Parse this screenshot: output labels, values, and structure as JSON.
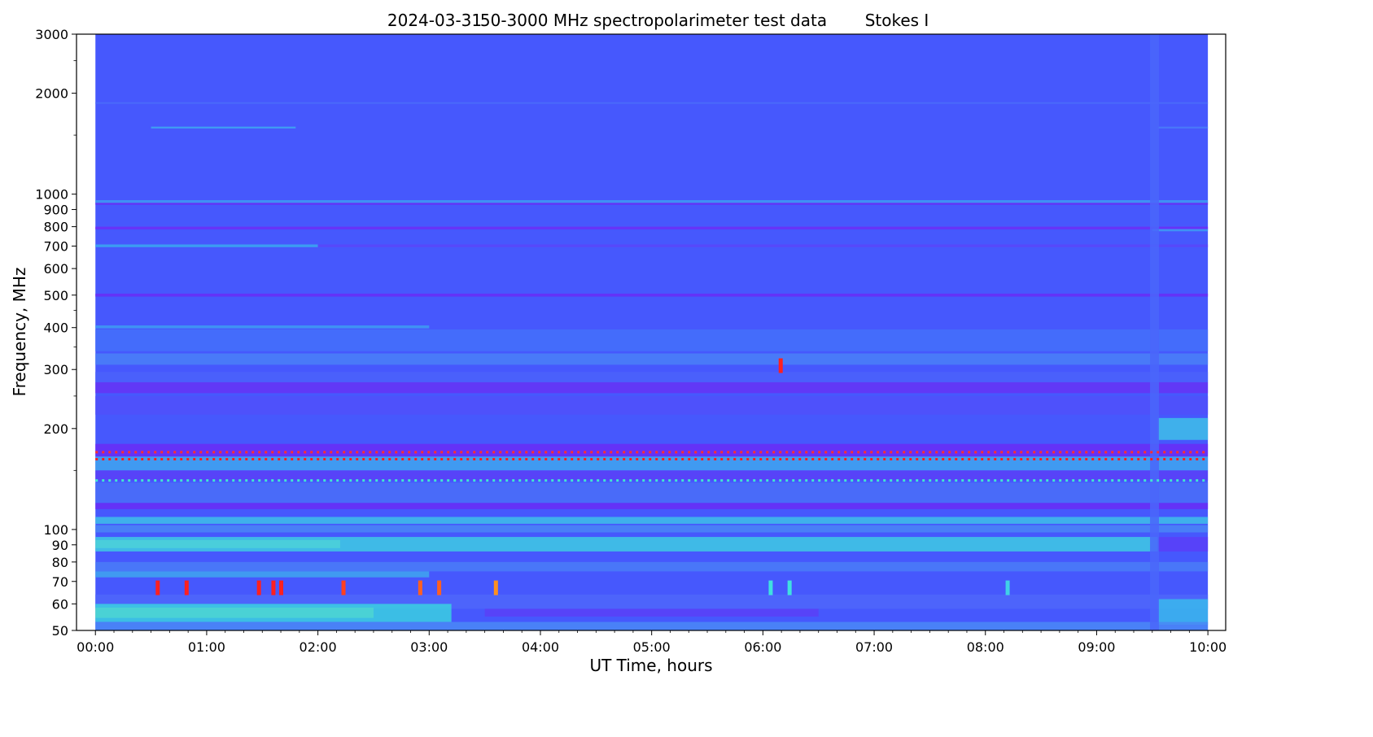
{
  "chart_data": {
    "type": "heatmap",
    "title": {
      "date": "2024-03-31",
      "description": "50-3000 MHz spectropolarimeter test data",
      "parameter": "Stokes I"
    },
    "xlabel": "UT Time, hours",
    "ylabel": "Frequency, MHz",
    "x_scale": "linear",
    "y_scale": "log",
    "xlim_hours": [
      -0.17,
      10.16
    ],
    "data_extent_hours": [
      0,
      10
    ],
    "ylim": [
      50,
      3000
    ],
    "x_ticks": [
      {
        "value": 0,
        "label": "00:00"
      },
      {
        "value": 1,
        "label": "01:00"
      },
      {
        "value": 2,
        "label": "02:00"
      },
      {
        "value": 3,
        "label": "03:00"
      },
      {
        "value": 4,
        "label": "04:00"
      },
      {
        "value": 5,
        "label": "05:00"
      },
      {
        "value": 6,
        "label": "06:00"
      },
      {
        "value": 7,
        "label": "07:00"
      },
      {
        "value": 8,
        "label": "08:00"
      },
      {
        "value": 9,
        "label": "09:00"
      },
      {
        "value": 10,
        "label": "10:00"
      }
    ],
    "y_ticks": [
      {
        "value": 50,
        "label": "50"
      },
      {
        "value": 60,
        "label": "60"
      },
      {
        "value": 70,
        "label": "70"
      },
      {
        "value": 80,
        "label": "80"
      },
      {
        "value": 90,
        "label": "90"
      },
      {
        "value": 100,
        "label": "100"
      },
      {
        "value": 200,
        "label": "200"
      },
      {
        "value": 300,
        "label": "300"
      },
      {
        "value": 400,
        "label": "400"
      },
      {
        "value": 500,
        "label": "500"
      },
      {
        "value": 600,
        "label": "600"
      },
      {
        "value": 700,
        "label": "700"
      },
      {
        "value": 800,
        "label": "800"
      },
      {
        "value": 900,
        "label": "900"
      },
      {
        "value": 1000,
        "label": "1000"
      },
      {
        "value": 2000,
        "label": "2000"
      },
      {
        "value": 3000,
        "label": "3000"
      }
    ],
    "y_minor_ticks": [
      1500,
      2500,
      150,
      250,
      350,
      450
    ],
    "colormap": "rainbow",
    "background_color": "#4658fd",
    "bands": [
      {
        "fmin": 1570,
        "fmax": 1590,
        "color": "#3ea8f0",
        "t0": 0.5,
        "t1": 1.8
      },
      {
        "fmin": 1570,
        "fmax": 1590,
        "color": "#4a7cf8",
        "t0": 9.55,
        "t1": 10
      },
      {
        "fmin": 1860,
        "fmax": 1880,
        "color": "#4b6ef9",
        "t0": 0,
        "t1": 10
      },
      {
        "fmin": 940,
        "fmax": 960,
        "color": "#3e9af2",
        "t0": 0,
        "t1": 10
      },
      {
        "fmin": 930,
        "fmax": 942,
        "color": "#6a2cf6",
        "t0": 0,
        "t1": 10
      },
      {
        "fmin": 785,
        "fmax": 800,
        "color": "#6d2df6",
        "t0": 0,
        "t1": 10
      },
      {
        "fmin": 775,
        "fmax": 787,
        "color": "#3e9cf2",
        "t0": 9.5,
        "t1": 10
      },
      {
        "fmin": 695,
        "fmax": 708,
        "color": "#3aa8ef",
        "t0": 0,
        "t1": 2
      },
      {
        "fmin": 695,
        "fmax": 708,
        "color": "#5a45f9",
        "t0": 2,
        "t1": 10
      },
      {
        "fmin": 495,
        "fmax": 505,
        "color": "#6a2cf6",
        "t0": 0,
        "t1": 10
      },
      {
        "fmin": 398,
        "fmax": 406,
        "color": "#3e9cf2",
        "t0": 0,
        "t1": 3
      },
      {
        "fmin": 340,
        "fmax": 395,
        "color": "#4470fa",
        "t0": 0,
        "t1": 10
      },
      {
        "fmin": 310,
        "fmax": 335,
        "color": "#4a80f7",
        "t0": 0,
        "t1": 10
      },
      {
        "fmin": 255,
        "fmax": 275,
        "color": "#6632f5",
        "t0": 0,
        "t1": 10
      },
      {
        "fmin": 275,
        "fmax": 295,
        "color": "#4b62fa",
        "t0": 0,
        "t1": 10
      },
      {
        "fmin": 220,
        "fmax": 250,
        "color": "#5050fa",
        "t0": 0,
        "t1": 10
      },
      {
        "fmin": 185,
        "fmax": 215,
        "color": "#3ec0e8",
        "t0": 9.55,
        "t1": 10
      },
      {
        "fmin": 165,
        "fmax": 180,
        "color": "#6a2cf6",
        "t0": 0,
        "t1": 10
      },
      {
        "fmin": 150,
        "fmax": 165,
        "color": "#3fa6ef",
        "t0": 0,
        "t1": 10
      },
      {
        "fmin": 140,
        "fmax": 150,
        "color": "#5a40f7",
        "t0": 0,
        "t1": 10
      },
      {
        "fmin": 120,
        "fmax": 138,
        "color": "#4a6ef8",
        "t0": 0,
        "t1": 10
      },
      {
        "fmin": 115,
        "fmax": 120,
        "color": "#6a2cf6",
        "t0": 0,
        "t1": 10
      },
      {
        "fmin": 104,
        "fmax": 109,
        "color": "#3ec0e8",
        "t0": 0,
        "t1": 10
      },
      {
        "fmin": 98,
        "fmax": 103,
        "color": "#4a86f6",
        "t0": 0,
        "t1": 10
      },
      {
        "fmin": 88,
        "fmax": 93,
        "color": "#9ef0a0",
        "t0": 0,
        "t1": 2.2
      },
      {
        "fmin": 86,
        "fmax": 95,
        "color": "#3ecbe3",
        "t0": 0,
        "t1": 9.55
      },
      {
        "fmin": 86,
        "fmax": 95,
        "color": "#5b3ef8",
        "t0": 9.55,
        "t1": 10
      },
      {
        "fmin": 75,
        "fmax": 80,
        "color": "#4a7cf7",
        "t0": 0,
        "t1": 10
      },
      {
        "fmin": 72,
        "fmax": 75,
        "color": "#3fa6ef",
        "t0": 0,
        "t1": 3
      },
      {
        "fmin": 58,
        "fmax": 64,
        "color": "#4f66fa",
        "t0": 0,
        "t1": 10
      },
      {
        "fmin": 55,
        "fmax": 58,
        "color": "#5a40f7",
        "t0": 3.5,
        "t1": 6.5
      },
      {
        "fmin": 54.5,
        "fmax": 58.5,
        "color": "#b8f37e",
        "t0": 0,
        "t1": 2.5
      },
      {
        "fmin": 53,
        "fmax": 60,
        "color": "#3ad0e0",
        "t0": 0,
        "t1": 3.2
      },
      {
        "fmin": 52,
        "fmax": 62,
        "color": "#3ab8ec",
        "t0": 9.55,
        "t1": 10
      },
      {
        "fmin": 50,
        "fmax": 53,
        "color": "#4a88f6",
        "t0": 0,
        "t1": 10
      },
      {
        "fmin": 50,
        "fmax": 3000,
        "color": "#4a66fa",
        "t0": 9.48,
        "t1": 9.56
      }
    ],
    "bursts": [
      {
        "t": 0.56,
        "f": 67,
        "color": "#ff2020"
      },
      {
        "t": 0.82,
        "f": 67,
        "color": "#ff2020"
      },
      {
        "t": 1.47,
        "f": 67,
        "color": "#ff2020"
      },
      {
        "t": 1.6,
        "f": 67,
        "color": "#ff2020"
      },
      {
        "t": 1.67,
        "f": 67,
        "color": "#ff2020"
      },
      {
        "t": 2.23,
        "f": 67,
        "color": "#ff4020"
      },
      {
        "t": 2.92,
        "f": 67,
        "color": "#ff6020"
      },
      {
        "t": 3.09,
        "f": 67,
        "color": "#ff6020"
      },
      {
        "t": 3.6,
        "f": 67,
        "color": "#ff9020"
      },
      {
        "t": 6.07,
        "f": 67,
        "color": "#40e0e0"
      },
      {
        "t": 6.24,
        "f": 67,
        "color": "#40e0e0"
      },
      {
        "t": 8.2,
        "f": 67,
        "color": "#40d0e8"
      },
      {
        "t": 6.16,
        "f": 308,
        "color": "#ff2020"
      }
    ],
    "rfi_lines": [
      {
        "f": 162,
        "color": "#ff2020",
        "t0": 0,
        "t1": 10
      },
      {
        "f": 170,
        "color": "#ff3030",
        "t0": 0,
        "t1": 10
      },
      {
        "f": 140,
        "color": "#40e8d0",
        "t0": 0,
        "t1": 10
      }
    ]
  }
}
